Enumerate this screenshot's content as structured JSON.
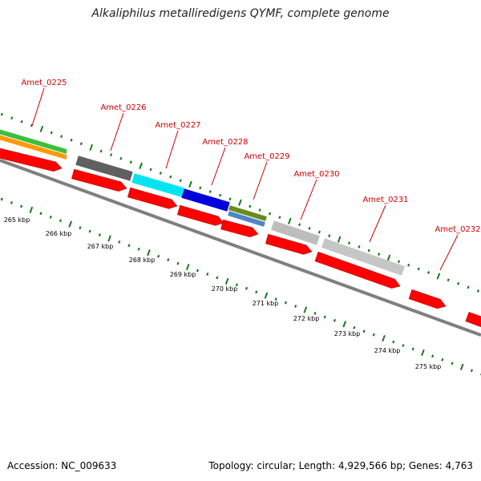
{
  "title": "Alkaliphilus metalliredigens QYMF, complete genome",
  "footer": {
    "accession": "Accession: NC_009633",
    "topology": "Topology: circular; Length: 4,929,566 bp; Genes: 4,763"
  },
  "colors": {
    "gene_label": "#cc0000",
    "tick": "#1a7a1a",
    "backbone": "#7f7f7f",
    "cds_red": "#ff0000"
  },
  "scale_labels": [
    "265 kbp",
    "266 kbp",
    "267 kbp",
    "268 kbp",
    "269 kbp",
    "270 kbp",
    "271 kbp",
    "272 kbp",
    "273 kbp",
    "274 kbp",
    "275 kbp"
  ],
  "genes": [
    {
      "label": "Amet_0225"
    },
    {
      "label": "Amet_0226"
    },
    {
      "label": "Amet_0227"
    },
    {
      "label": "Amet_0228"
    },
    {
      "label": "Amet_0229"
    },
    {
      "label": "Amet_0230"
    },
    {
      "label": "Amet_0231"
    },
    {
      "label": "Amet_0232"
    }
  ]
}
